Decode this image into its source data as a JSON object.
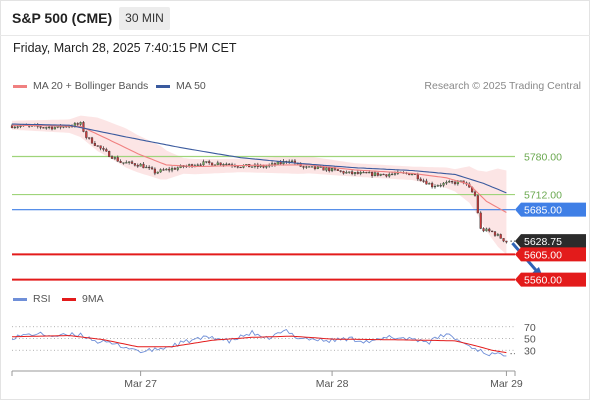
{
  "header": {
    "title": "S&P 500 (CME)",
    "timeframe": "30 MIN",
    "datetime": "Friday, March 28, 2025 7:40:15 PM CET"
  },
  "legend": {
    "ma20": "MA 20 + Bollinger Bands",
    "ma50": "MA 50",
    "copyright": "Research © 2025 Trading Central"
  },
  "colors": {
    "ma20": "#f08080",
    "ma50": "#3a5a9e",
    "bands": "#fbe0e0",
    "resistance": "#9fd47a",
    "pivot": "#3f7fe6",
    "support": "#e31b1b",
    "arrow": "#2e63b6",
    "rsi": "#6f8fd8",
    "rsi_ma": "#e31b1b"
  },
  "price_levels": [
    {
      "name": "resistance-2",
      "value": 5780.0,
      "label": "5780.00",
      "kind": "resistance"
    },
    {
      "name": "resistance-1",
      "value": 5712.0,
      "label": "5712.00",
      "kind": "resistance"
    },
    {
      "name": "pivot",
      "value": 5685.0,
      "label": "5685.00",
      "kind": "pivot"
    },
    {
      "name": "last-price",
      "value": 5628.75,
      "label": "5628.75",
      "kind": "last"
    },
    {
      "name": "support-1",
      "value": 5605.0,
      "label": "5605.00",
      "kind": "support"
    },
    {
      "name": "support-2",
      "value": 5560.0,
      "label": "5560.00",
      "kind": "support"
    }
  ],
  "rsi_panel": {
    "rsi_label": "RSI",
    "ma_label": "9MA",
    "levels": [
      70,
      50,
      30
    ],
    "level_labels": [
      "70",
      "50",
      "30"
    ]
  },
  "x_axis": {
    "ticks": [
      {
        "label": "Mar 27",
        "index": 45
      },
      {
        "label": "Mar 28",
        "index": 112
      },
      {
        "label": "Mar 29",
        "index": 173
      }
    ]
  },
  "chart_data": {
    "type": "candlestick",
    "ylim": [
      5545,
      5890
    ],
    "rsi_ylim": [
      10,
      90
    ],
    "bars": 176,
    "close_keypoints": [
      [
        0,
        5835
      ],
      [
        15,
        5832
      ],
      [
        24,
        5838
      ],
      [
        26,
        5815
      ],
      [
        32,
        5790
      ],
      [
        38,
        5770
      ],
      [
        45,
        5765
      ],
      [
        50,
        5752
      ],
      [
        58,
        5760
      ],
      [
        66,
        5768
      ],
      [
        74,
        5768
      ],
      [
        80,
        5763
      ],
      [
        88,
        5762
      ],
      [
        94,
        5768
      ],
      [
        97,
        5774
      ],
      [
        102,
        5760
      ],
      [
        110,
        5758
      ],
      [
        118,
        5750
      ],
      [
        130,
        5748
      ],
      [
        140,
        5750
      ],
      [
        143,
        5740
      ],
      [
        147,
        5728
      ],
      [
        152,
        5732
      ],
      [
        158,
        5735
      ],
      [
        162,
        5710
      ],
      [
        164,
        5650
      ],
      [
        168,
        5645
      ],
      [
        173,
        5628
      ]
    ],
    "ma20_keypoints": [
      [
        0,
        5836
      ],
      [
        24,
        5834
      ],
      [
        34,
        5810
      ],
      [
        44,
        5785
      ],
      [
        54,
        5765
      ],
      [
        64,
        5762
      ],
      [
        80,
        5764
      ],
      [
        96,
        5765
      ],
      [
        104,
        5765
      ],
      [
        120,
        5756
      ],
      [
        140,
        5750
      ],
      [
        152,
        5742
      ],
      [
        160,
        5730
      ],
      [
        166,
        5700
      ],
      [
        173,
        5680
      ]
    ],
    "ma50_keypoints": [
      [
        0,
        5838
      ],
      [
        20,
        5836
      ],
      [
        40,
        5815
      ],
      [
        60,
        5795
      ],
      [
        80,
        5778
      ],
      [
        100,
        5768
      ],
      [
        120,
        5760
      ],
      [
        140,
        5755
      ],
      [
        155,
        5748
      ],
      [
        165,
        5732
      ],
      [
        173,
        5715
      ]
    ],
    "band_width_keypoints": [
      [
        0,
        8
      ],
      [
        20,
        12
      ],
      [
        30,
        30
      ],
      [
        40,
        35
      ],
      [
        52,
        30
      ],
      [
        60,
        14
      ],
      [
        80,
        12
      ],
      [
        100,
        16
      ],
      [
        120,
        12
      ],
      [
        140,
        12
      ],
      [
        155,
        20
      ],
      [
        163,
        40
      ],
      [
        170,
        70
      ],
      [
        173,
        75
      ]
    ],
    "rsi_keypoints": [
      [
        0,
        52
      ],
      [
        8,
        58
      ],
      [
        16,
        54
      ],
      [
        24,
        57
      ],
      [
        30,
        45
      ],
      [
        38,
        38
      ],
      [
        46,
        27
      ],
      [
        54,
        35
      ],
      [
        62,
        46
      ],
      [
        70,
        53
      ],
      [
        76,
        45
      ],
      [
        84,
        60
      ],
      [
        88,
        48
      ],
      [
        96,
        63
      ],
      [
        100,
        52
      ],
      [
        110,
        46
      ],
      [
        118,
        50
      ],
      [
        126,
        44
      ],
      [
        132,
        52
      ],
      [
        140,
        50
      ],
      [
        146,
        44
      ],
      [
        152,
        58
      ],
      [
        158,
        42
      ],
      [
        162,
        33
      ],
      [
        166,
        25
      ],
      [
        170,
        22
      ],
      [
        173,
        24
      ]
    ],
    "rsi_ma_keypoints": [
      [
        0,
        53
      ],
      [
        20,
        55
      ],
      [
        32,
        48
      ],
      [
        44,
        36
      ],
      [
        56,
        36
      ],
      [
        70,
        47
      ],
      [
        84,
        52
      ],
      [
        98,
        54
      ],
      [
        112,
        49
      ],
      [
        130,
        48
      ],
      [
        145,
        47
      ],
      [
        155,
        46
      ],
      [
        162,
        38
      ],
      [
        168,
        30
      ],
      [
        173,
        26
      ]
    ],
    "projection": {
      "from": [
        173,
        5628.75
      ],
      "to": [
        186,
        5560
      ]
    }
  }
}
